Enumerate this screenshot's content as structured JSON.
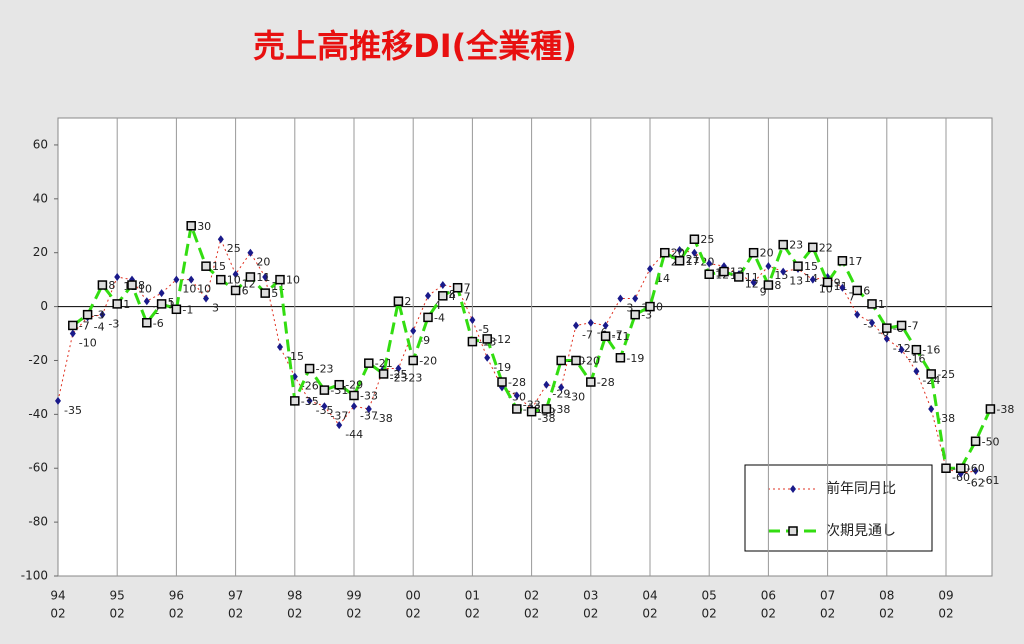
{
  "chart_data": {
    "type": "line",
    "title": "売上高推移DI(全業種)",
    "categories": [
      {
        "year": "94",
        "month": "02"
      },
      null,
      null,
      null,
      {
        "year": "95",
        "month": "02"
      },
      null,
      null,
      null,
      {
        "year": "96",
        "month": "02"
      },
      null,
      null,
      null,
      {
        "year": "97",
        "month": "02"
      },
      null,
      null,
      null,
      {
        "year": "98",
        "month": "02"
      },
      null,
      null,
      null,
      {
        "year": "99",
        "month": "02"
      },
      null,
      null,
      null,
      {
        "year": "00",
        "month": "02"
      },
      null,
      null,
      null,
      {
        "year": "01",
        "month": "02"
      },
      null,
      null,
      null,
      {
        "year": "02",
        "month": "02"
      },
      null,
      null,
      null,
      {
        "year": "03",
        "month": "02"
      },
      null,
      null,
      null,
      {
        "year": "04",
        "month": "02"
      },
      null,
      null,
      null,
      {
        "year": "05",
        "month": "02"
      },
      null,
      null,
      null,
      {
        "year": "06",
        "month": "02"
      },
      null,
      null,
      null,
      {
        "year": "07",
        "month": "02"
      },
      null,
      null,
      null,
      {
        "year": "08",
        "month": "02"
      },
      null,
      null,
      null,
      {
        "year": "09",
        "month": "02"
      },
      null,
      null,
      null
    ],
    "series": [
      {
        "name": "前年同月比",
        "color": "#e03020",
        "marker_color": "#1a1a8a",
        "values": [
          -35,
          -10,
          -4,
          -3,
          11,
          10,
          2,
          5,
          10,
          10,
          3,
          25,
          12,
          20,
          11,
          -15,
          -26,
          -35,
          -37,
          -44,
          -37,
          -38,
          -23,
          -23,
          -9,
          4,
          8,
          7,
          -5,
          -19,
          -30,
          -33,
          -38,
          -29,
          -30,
          -7,
          -6,
          -7,
          3,
          3,
          14,
          20,
          21,
          20,
          16,
          15,
          12,
          9,
          15,
          13,
          14,
          10,
          11,
          7,
          -3,
          -6,
          -12,
          -16,
          -24,
          -38,
          -60,
          -62,
          -61,
          null
        ]
      },
      {
        "name": "次期見通し",
        "color": "#33dd11",
        "values": [
          null,
          -7,
          -3,
          8,
          1,
          8,
          -6,
          1,
          -1,
          30,
          15,
          10,
          6,
          11,
          5,
          10,
          -35,
          -23,
          -31,
          -29,
          -33,
          -21,
          -25,
          2,
          -20,
          -4,
          4,
          7,
          -13,
          -12,
          -28,
          -38,
          -39,
          -38,
          -20,
          -20,
          -28,
          -11,
          -19,
          -3,
          0,
          20,
          17,
          25,
          12,
          13,
          11,
          20,
          8,
          23,
          15,
          22,
          9,
          17,
          6,
          1,
          -8,
          -7,
          -16,
          -25,
          -60,
          -60,
          -50,
          -38
        ]
      }
    ],
    "ylim": [
      -100,
      70
    ],
    "yticks": [
      -100,
      -80,
      -60,
      -40,
      -20,
      0,
      20,
      40,
      60
    ]
  }
}
